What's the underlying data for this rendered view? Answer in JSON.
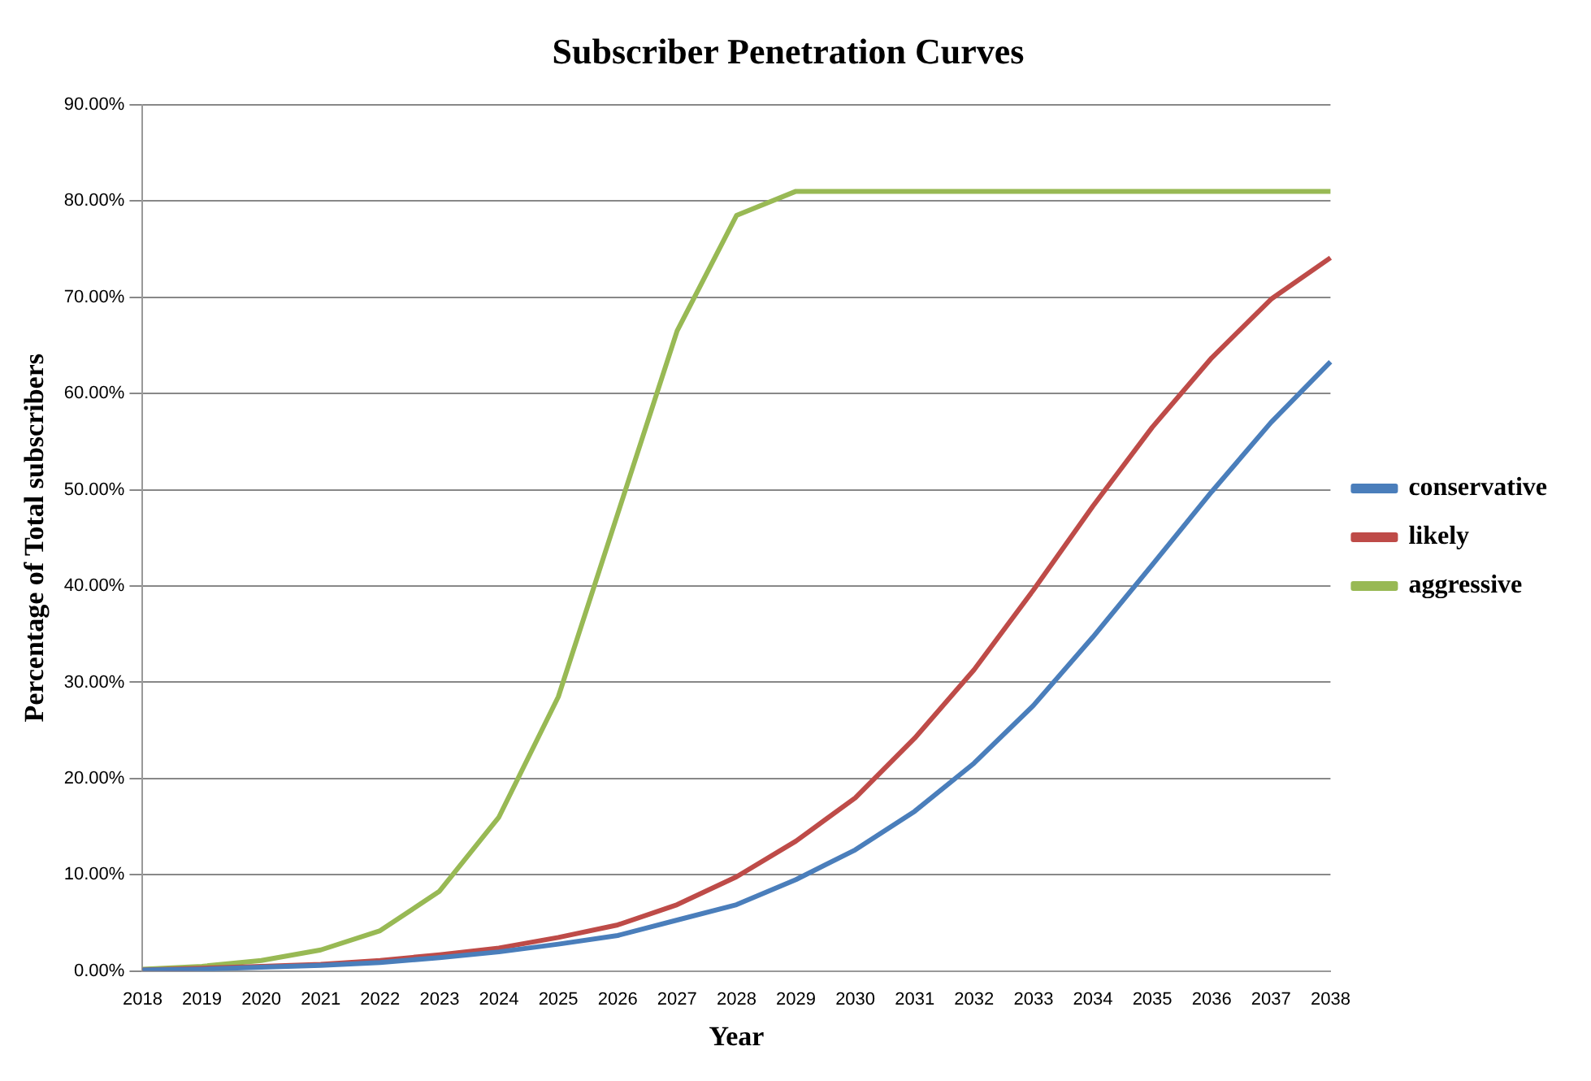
{
  "chart_data": {
    "type": "line",
    "title": "Subscriber Penetration Curves",
    "xlabel": "Year",
    "ylabel": "Percentage of Total subscribers",
    "categories": [
      "2018",
      "2019",
      "2020",
      "2021",
      "2022",
      "2023",
      "2024",
      "2025",
      "2026",
      "2027",
      "2028",
      "2029",
      "2030",
      "2031",
      "2032",
      "2033",
      "2034",
      "2035",
      "2036",
      "2037",
      "2038"
    ],
    "series": [
      {
        "name": "conservative",
        "color": "#4a7ebb",
        "values": [
          0.1,
          0.2,
          0.4,
          0.6,
          0.9,
          1.4,
          2,
          2.8,
          3.7,
          5.3,
          6.9,
          9.5,
          12.6,
          16.6,
          21.6,
          27.6,
          34.7,
          42.2,
          49.8,
          57,
          63.3
        ]
      },
      {
        "name": "likely",
        "color": "#be4b48",
        "values": [
          0.1,
          0.3,
          0.5,
          0.7,
          1.1,
          1.7,
          2.4,
          3.5,
          4.8,
          6.9,
          9.8,
          13.5,
          18,
          24.2,
          31.3,
          39.6,
          48.3,
          56.5,
          63.7,
          69.8,
          74.1
        ]
      },
      {
        "name": "aggressive",
        "color": "#98b954",
        "values": [
          0.2,
          0.5,
          1.1,
          2.2,
          4.2,
          8.3,
          16,
          28.5,
          47.5,
          66.5,
          78.5,
          81,
          81,
          81,
          81,
          81,
          81,
          81,
          81,
          81,
          81
        ]
      }
    ],
    "ylim": [
      0,
      90
    ],
    "yticks": [
      {
        "value": 0,
        "label": "0.00%"
      },
      {
        "value": 10,
        "label": "10.00%"
      },
      {
        "value": 20,
        "label": "20.00%"
      },
      {
        "value": 30,
        "label": "30.00%"
      },
      {
        "value": 40,
        "label": "40.00%"
      },
      {
        "value": 50,
        "label": "50.00%"
      },
      {
        "value": 60,
        "label": "60.00%"
      },
      {
        "value": 70,
        "label": "70.00%"
      },
      {
        "value": 80,
        "label": "80.00%"
      },
      {
        "value": 90,
        "label": "90.00%"
      }
    ],
    "grid": "y",
    "legend": "right",
    "marker": "none",
    "line_style": "solid"
  }
}
